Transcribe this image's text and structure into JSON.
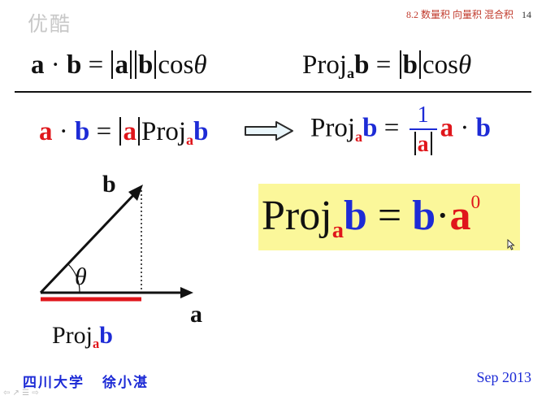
{
  "watermark": "优酷",
  "header": {
    "section": "8.2  数量积  向量积  混合积",
    "page": "14"
  },
  "top_formula": {
    "dot_a": "a",
    "dot_op": "·",
    "dot_b": "b",
    "eq": "=",
    "abs_a": "a",
    "abs_b": "b",
    "cos": "cos",
    "theta": "θ"
  },
  "top_proj": {
    "proj": "Proj",
    "sub_a": "a",
    "b": "b",
    "eq": "=",
    "abs_b": "b",
    "cos": "cos",
    "theta": "θ"
  },
  "mid_left": {
    "a": "a",
    "dot": "·",
    "b": "b",
    "eq": "=",
    "abs_a": "a",
    "proj": "Proj",
    "sub_a": "a",
    "proj_b": "b"
  },
  "mid_right": {
    "proj": "Proj",
    "sub_a": "a",
    "b": "b",
    "eq": "=",
    "num": "1",
    "den_a": "a",
    "a": "a",
    "dot": "·",
    "b2": "b"
  },
  "highlight": {
    "proj": "Proj",
    "sub_a": "a",
    "b": "b",
    "eq": "=",
    "b2": "b",
    "dot": "·",
    "a": "a",
    "sup": "0"
  },
  "diagram": {
    "label_b": "b",
    "label_a": "a",
    "label_theta": "θ",
    "proj": "Proj",
    "sub_a": "a",
    "proj_b": "b"
  },
  "footer": {
    "school": "四川大学",
    "author": "徐小湛",
    "date": "Sep 2013",
    "nav": "⇦ ↗ ☰ ⇨"
  },
  "colors": {
    "red": "#e0161b",
    "blue": "#1d2bd6",
    "highlight": "#fbf79a"
  }
}
